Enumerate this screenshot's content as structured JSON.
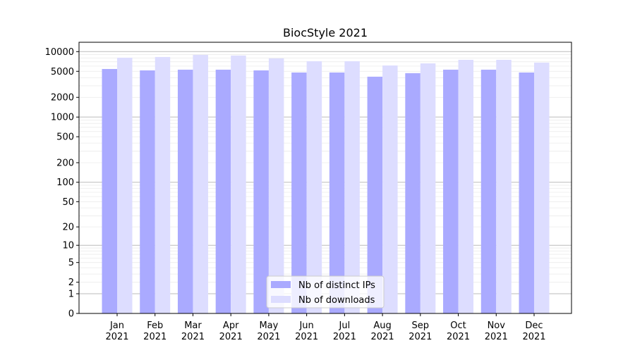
{
  "chart_data": {
    "type": "bar",
    "title": "BiocStyle 2021",
    "xlabel": "",
    "ylabel": "",
    "yscale": "log10(1+y)",
    "ylim": [
      0,
      13000
    ],
    "grid": true,
    "legend_placement": "lower-center",
    "categories": [
      [
        "Jan",
        "2021"
      ],
      [
        "Feb",
        "2021"
      ],
      [
        "Mar",
        "2021"
      ],
      [
        "Apr",
        "2021"
      ],
      [
        "May",
        "2021"
      ],
      [
        "Jun",
        "2021"
      ],
      [
        "Jul",
        "2021"
      ],
      [
        "Aug",
        "2021"
      ],
      [
        "Sep",
        "2021"
      ],
      [
        "Oct",
        "2021"
      ],
      [
        "Nov",
        "2021"
      ],
      [
        "Dec",
        "2021"
      ]
    ],
    "y_ticks": [
      0,
      1,
      2,
      5,
      10,
      20,
      50,
      100,
      200,
      500,
      1000,
      2000,
      5000,
      10000
    ],
    "series": [
      {
        "name": "Nb of distinct IPs",
        "color": "#aaaaff",
        "values": [
          5430,
          5170,
          5300,
          5300,
          5170,
          4800,
          4800,
          4140,
          4690,
          5300,
          5300,
          4800
        ]
      },
      {
        "name": "Nb of downloads",
        "color": "#ddddff",
        "values": [
          8080,
          8280,
          8920,
          8710,
          7880,
          7140,
          7140,
          6150,
          6620,
          7500,
          7500,
          6800
        ]
      }
    ]
  }
}
